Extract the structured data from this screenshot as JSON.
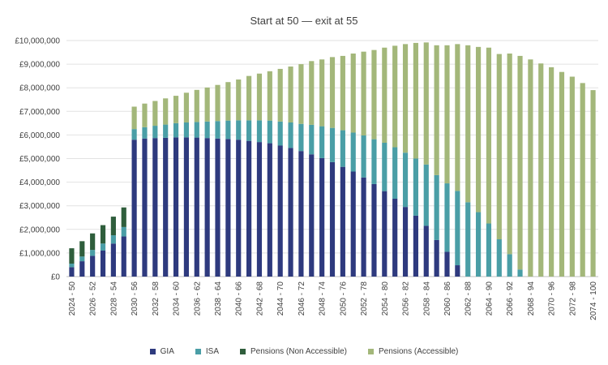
{
  "chart_data": {
    "type": "bar",
    "stacked": true,
    "title": "Start at 50 — exit at 55",
    "xlabel": "",
    "ylabel": "",
    "ylim": [
      0,
      10000000
    ],
    "yticks": [
      0,
      1000000,
      2000000,
      3000000,
      4000000,
      5000000,
      6000000,
      7000000,
      8000000,
      9000000,
      10000000
    ],
    "ytick_labels": [
      "£0",
      "£1,000,000",
      "£2,000,000",
      "£3,000,000",
      "£4,000,000",
      "£5,000,000",
      "£6,000,000",
      "£7,000,000",
      "£8,000,000",
      "£9,000,000",
      "£10,000,000"
    ],
    "grid": true,
    "legend_position": "bottom",
    "categories": [
      "2024 - 50",
      "2025 - 51",
      "2026 - 52",
      "2027 - 53",
      "2028 - 54",
      "2029 - 55",
      "2030 - 56",
      "2031 - 57",
      "2032 - 58",
      "2033 - 59",
      "2034 - 60",
      "2035 - 61",
      "2036 - 62",
      "2037 - 63",
      "2038 - 64",
      "2039 - 65",
      "2040 - 66",
      "2041 - 67",
      "2042 - 68",
      "2043 - 69",
      "2044 - 70",
      "2045 - 71",
      "2046 - 72",
      "2047 - 73",
      "2048 - 74",
      "2049 - 75",
      "2050 - 76",
      "2051 - 77",
      "2052 - 78",
      "2053 - 79",
      "2054 - 80",
      "2055 - 81",
      "2056 - 82",
      "2057 - 83",
      "2058 - 84",
      "2059 - 85",
      "2060 - 86",
      "2061 - 87",
      "2062 - 88",
      "2063 - 89",
      "2064 - 90",
      "2065 - 91",
      "2066 - 92",
      "2067 - 93",
      "2068 - 94",
      "2069 - 95",
      "2070 - 96",
      "2071 - 97",
      "2072 - 98",
      "2073 - 99",
      "2074 - 100"
    ],
    "x_tick_labels": [
      "2024 - 50",
      "2026 - 52",
      "2028 - 54",
      "2030 - 56",
      "2032 - 58",
      "2034 - 60",
      "2036 - 62",
      "2038 - 64",
      "2040 - 66",
      "2042 - 68",
      "2044 - 70",
      "2046 - 72",
      "2048 - 74",
      "2050 - 76",
      "2052 - 78",
      "2054 - 80",
      "2056 - 82",
      "2058 - 84",
      "2060 - 86",
      "2062 - 88",
      "2064 - 90",
      "2066 - 92",
      "2068 - 94",
      "2070 - 96",
      "2072 - 98",
      "2074 - 100"
    ],
    "series": [
      {
        "name": "GIA",
        "color": "#2e3a7e",
        "values": [
          400000,
          650000,
          880000,
          1100000,
          1400000,
          1700000,
          5800000,
          5850000,
          5870000,
          5880000,
          5900000,
          5900000,
          5890000,
          5870000,
          5850000,
          5830000,
          5800000,
          5750000,
          5700000,
          5650000,
          5550000,
          5450000,
          5320000,
          5180000,
          5020000,
          4850000,
          4650000,
          4450000,
          4200000,
          3920000,
          3620000,
          3300000,
          2950000,
          2580000,
          2150000,
          1550000,
          1050000,
          480000,
          0,
          0,
          0,
          0,
          0,
          0,
          0,
          0,
          0,
          0,
          0,
          0,
          0
        ]
      },
      {
        "name": "ISA",
        "color": "#4a9ea6",
        "values": [
          150000,
          200000,
          250000,
          300000,
          350000,
          400000,
          450000,
          480000,
          520000,
          560000,
          600000,
          630000,
          660000,
          700000,
          740000,
          780000,
          820000,
          870000,
          920000,
          960000,
          1020000,
          1080000,
          1150000,
          1250000,
          1350000,
          1450000,
          1550000,
          1650000,
          1780000,
          1900000,
          2050000,
          2180000,
          2300000,
          2420000,
          2600000,
          2750000,
          2900000,
          3150000,
          3150000,
          2730000,
          2250000,
          1580000,
          950000,
          300000,
          0,
          0,
          0,
          0,
          0,
          0,
          0
        ]
      },
      {
        "name": "Pensions (Non Accessible)",
        "color": "#2f5e3c",
        "values": [
          650000,
          650000,
          700000,
          780000,
          790000,
          830000,
          0,
          0,
          0,
          0,
          0,
          0,
          0,
          0,
          0,
          0,
          0,
          0,
          0,
          0,
          0,
          0,
          0,
          0,
          0,
          0,
          0,
          0,
          0,
          0,
          0,
          0,
          0,
          0,
          0,
          0,
          0,
          0,
          0,
          0,
          0,
          0,
          0,
          0,
          0,
          0,
          0,
          0,
          0,
          0,
          0
        ]
      },
      {
        "name": "Pensions (Accessible)",
        "color": "#a3b77a",
        "values": [
          0,
          0,
          0,
          0,
          0,
          0,
          950000,
          1000000,
          1050000,
          1110000,
          1160000,
          1260000,
          1360000,
          1440000,
          1530000,
          1630000,
          1730000,
          1880000,
          1980000,
          2090000,
          2230000,
          2370000,
          2530000,
          2700000,
          2830000,
          3000000,
          3150000,
          3350000,
          3550000,
          3780000,
          4030000,
          4300000,
          4600000,
          4900000,
          5170000,
          5500000,
          5850000,
          6220000,
          6650000,
          7000000,
          7450000,
          7850000,
          8500000,
          9050000,
          9200000,
          9030000,
          8870000,
          8670000,
          8470000,
          8200000,
          7900000
        ]
      }
    ]
  }
}
